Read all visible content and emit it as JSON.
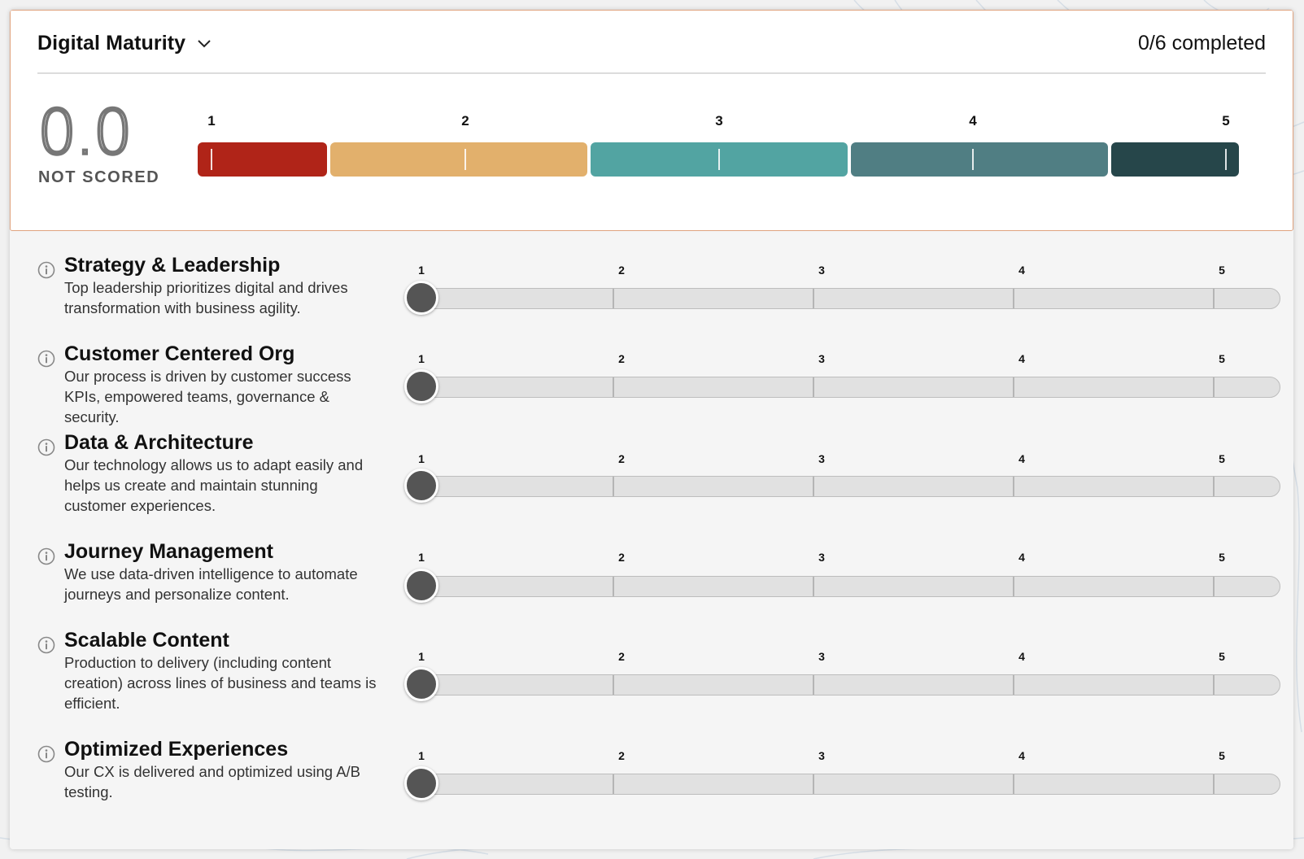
{
  "header": {
    "title": "Digital Maturity",
    "completed": "0/6 completed",
    "score": "0.0",
    "score_label": "NOT SCORED",
    "scale": [
      "1",
      "2",
      "3",
      "4",
      "5"
    ],
    "scale_colors": [
      "#b02418",
      "#e2b06c",
      "#52a4a2",
      "#507e83",
      "#26464a"
    ]
  },
  "slider_scale": [
    "1",
    "2",
    "3",
    "4",
    "5"
  ],
  "categories": [
    {
      "title": "Strategy & Leadership",
      "description": "Top leadership prioritizes digital and drives transformation with business agility.",
      "value": 1
    },
    {
      "title": "Customer Centered Org",
      "description": "Our process is driven by customer success KPIs, empowered teams, governance & security.",
      "value": 1
    },
    {
      "title": "Data & Architecture",
      "description": "Our technology allows us to adapt easily and helps us create and maintain stunning customer experiences.",
      "value": 1
    },
    {
      "title": "Journey Management",
      "description": "We use data-driven intelligence to automate journeys and personalize content.",
      "value": 1
    },
    {
      "title": "Scalable Content",
      "description": "Production to delivery (including content creation) across lines of business and teams is efficient.",
      "value": 1
    },
    {
      "title": "Optimized Experiences",
      "description": "Our CX is delivered and optimized using A/B testing.",
      "value": 1
    }
  ],
  "icons": {
    "title_toggle": "chevron-down-icon",
    "row_info": "info-icon"
  }
}
